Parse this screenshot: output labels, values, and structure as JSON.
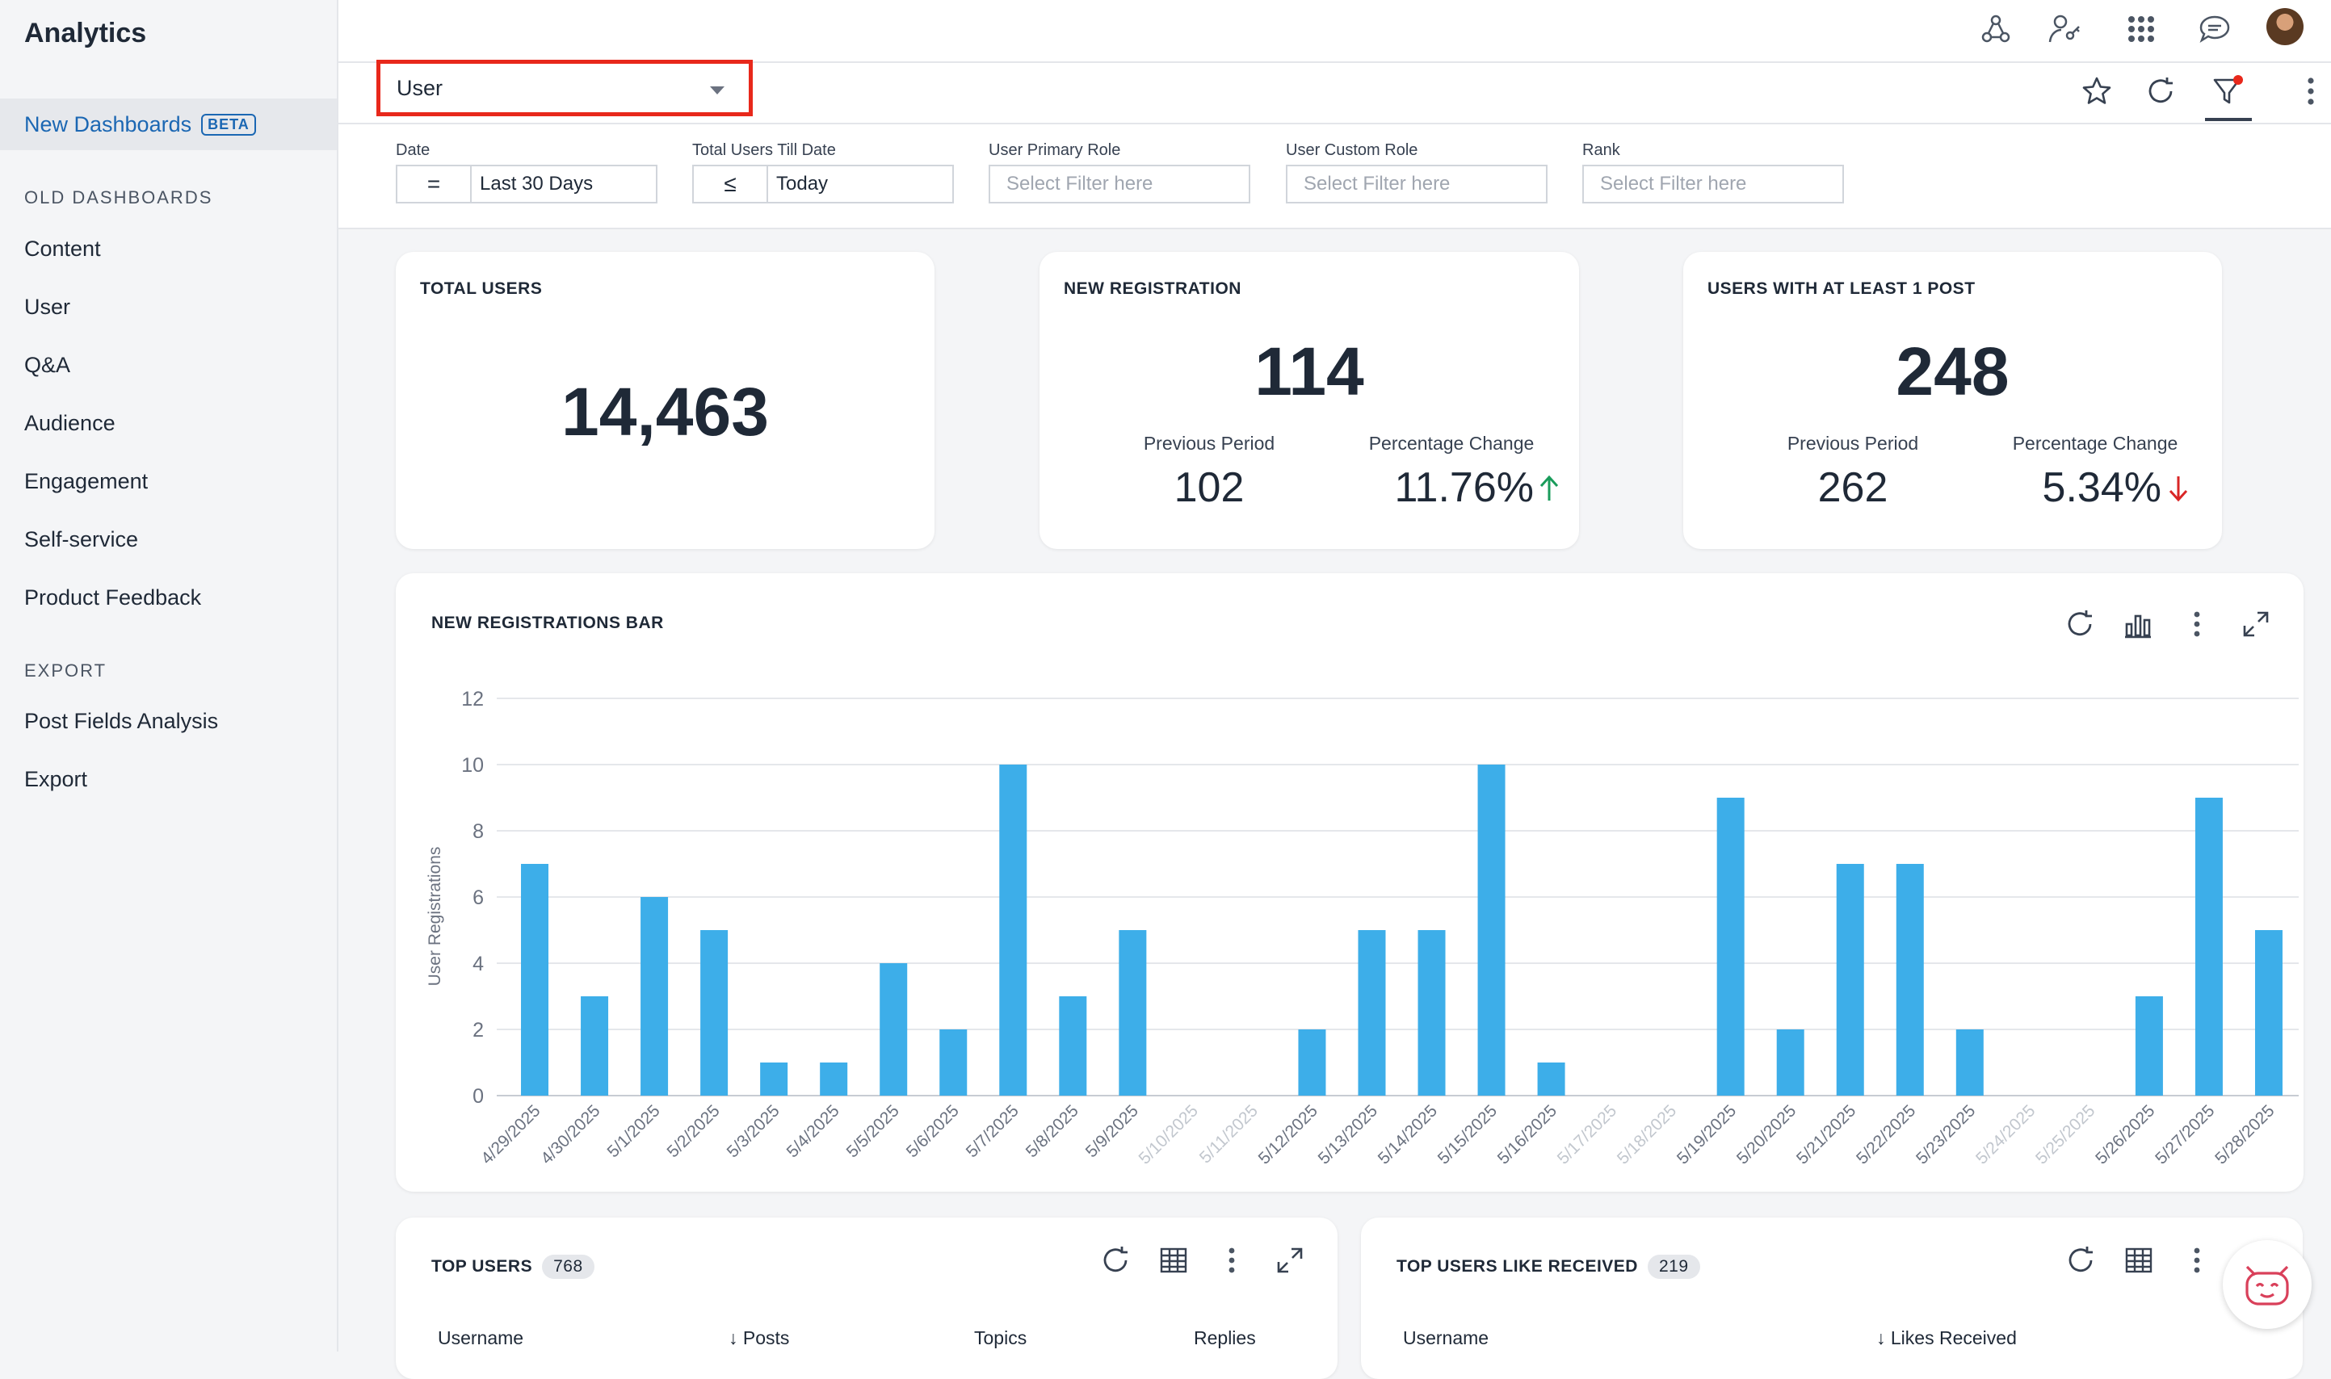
{
  "app": {
    "title": "Analytics"
  },
  "sidebar": {
    "active": {
      "label": "New Dashboards",
      "badge": "BETA"
    },
    "old_heading": "OLD DASHBOARDS",
    "items": [
      "Content",
      "User",
      "Q&A",
      "Audience",
      "Engagement",
      "Self-service",
      "Product Feedback"
    ],
    "export_heading": "EXPORT",
    "export_items": [
      "Post Fields Analysis",
      "Export"
    ]
  },
  "header": {
    "icons": [
      "workflow-icon",
      "user-key-icon",
      "apps-grid-icon",
      "chat-icon",
      "avatar"
    ]
  },
  "toolbar": {
    "dashboard_select": {
      "value": "User"
    },
    "icons": [
      "star-icon",
      "refresh-icon",
      "filter-icon",
      "more-icon"
    ],
    "filter_has_notification": true
  },
  "filters": [
    {
      "label": "Date",
      "operator": "=",
      "value": "Last 30 Days",
      "placeholder": ""
    },
    {
      "label": "Total Users Till Date",
      "operator": "≤",
      "value": "Today",
      "placeholder": ""
    },
    {
      "label": "User Primary Role",
      "operator": "",
      "value": "",
      "placeholder": "Select Filter here"
    },
    {
      "label": "User Custom Role",
      "operator": "",
      "value": "",
      "placeholder": "Select Filter here"
    },
    {
      "label": "Rank",
      "operator": "",
      "value": "",
      "placeholder": "Select Filter here"
    }
  ],
  "kpis": {
    "total_users": {
      "title": "TOTAL USERS",
      "value": "14,463"
    },
    "new_registration": {
      "title": "NEW REGISTRATION",
      "value": "114",
      "prev_label": "Previous Period",
      "prev_value": "102",
      "change_label": "Percentage Change",
      "change_value": "11.76%",
      "direction": "up",
      "color": "#1a9c5b"
    },
    "users_with_post": {
      "title": "USERS WITH AT LEAST 1 POST",
      "value": "248",
      "prev_label": "Previous Period",
      "prev_value": "262",
      "change_label": "Percentage Change",
      "change_value": "5.34%",
      "direction": "down",
      "color": "#d92626"
    }
  },
  "chart_card": {
    "title": "NEW REGISTRATIONS BAR",
    "icons": [
      "refresh-icon",
      "bar-chart-icon",
      "more-icon",
      "expand-icon"
    ]
  },
  "chart_data": {
    "type": "bar",
    "title": "NEW REGISTRATIONS BAR",
    "xlabel": "",
    "ylabel": "User Registrations",
    "ylim": [
      0,
      12
    ],
    "yticks": [
      0,
      2,
      4,
      6,
      8,
      10,
      12
    ],
    "grid": true,
    "bar_color": "#3daee9",
    "categories": [
      "4/29/2025",
      "4/30/2025",
      "5/1/2025",
      "5/2/2025",
      "5/3/2025",
      "5/4/2025",
      "5/5/2025",
      "5/6/2025",
      "5/7/2025",
      "5/8/2025",
      "5/9/2025",
      "5/10/2025",
      "5/11/2025",
      "5/12/2025",
      "5/13/2025",
      "5/14/2025",
      "5/15/2025",
      "5/16/2025",
      "5/17/2025",
      "5/18/2025",
      "5/19/2025",
      "5/20/2025",
      "5/21/2025",
      "5/22/2025",
      "5/23/2025",
      "5/24/2025",
      "5/25/2025",
      "5/26/2025",
      "5/27/2025",
      "5/28/2025"
    ],
    "values": [
      7,
      3,
      6,
      5,
      1,
      1,
      4,
      2,
      10,
      3,
      5,
      0,
      0,
      2,
      5,
      5,
      10,
      1,
      0,
      0,
      9,
      2,
      7,
      7,
      2,
      0,
      0,
      3,
      9,
      5
    ]
  },
  "top_users": {
    "title": "TOP USERS",
    "count": "768",
    "columns": [
      "Username",
      "Posts",
      "Topics",
      "Replies"
    ],
    "icons": [
      "refresh-icon",
      "table-icon",
      "more-icon",
      "expand-icon"
    ]
  },
  "top_likes": {
    "title": "TOP USERS LIKE RECEIVED",
    "count": "219",
    "columns": [
      "Username",
      "Likes Received"
    ],
    "icons": [
      "refresh-icon",
      "table-icon",
      "more-icon"
    ]
  },
  "assistant": {
    "icon": "assistant-bot-icon"
  }
}
